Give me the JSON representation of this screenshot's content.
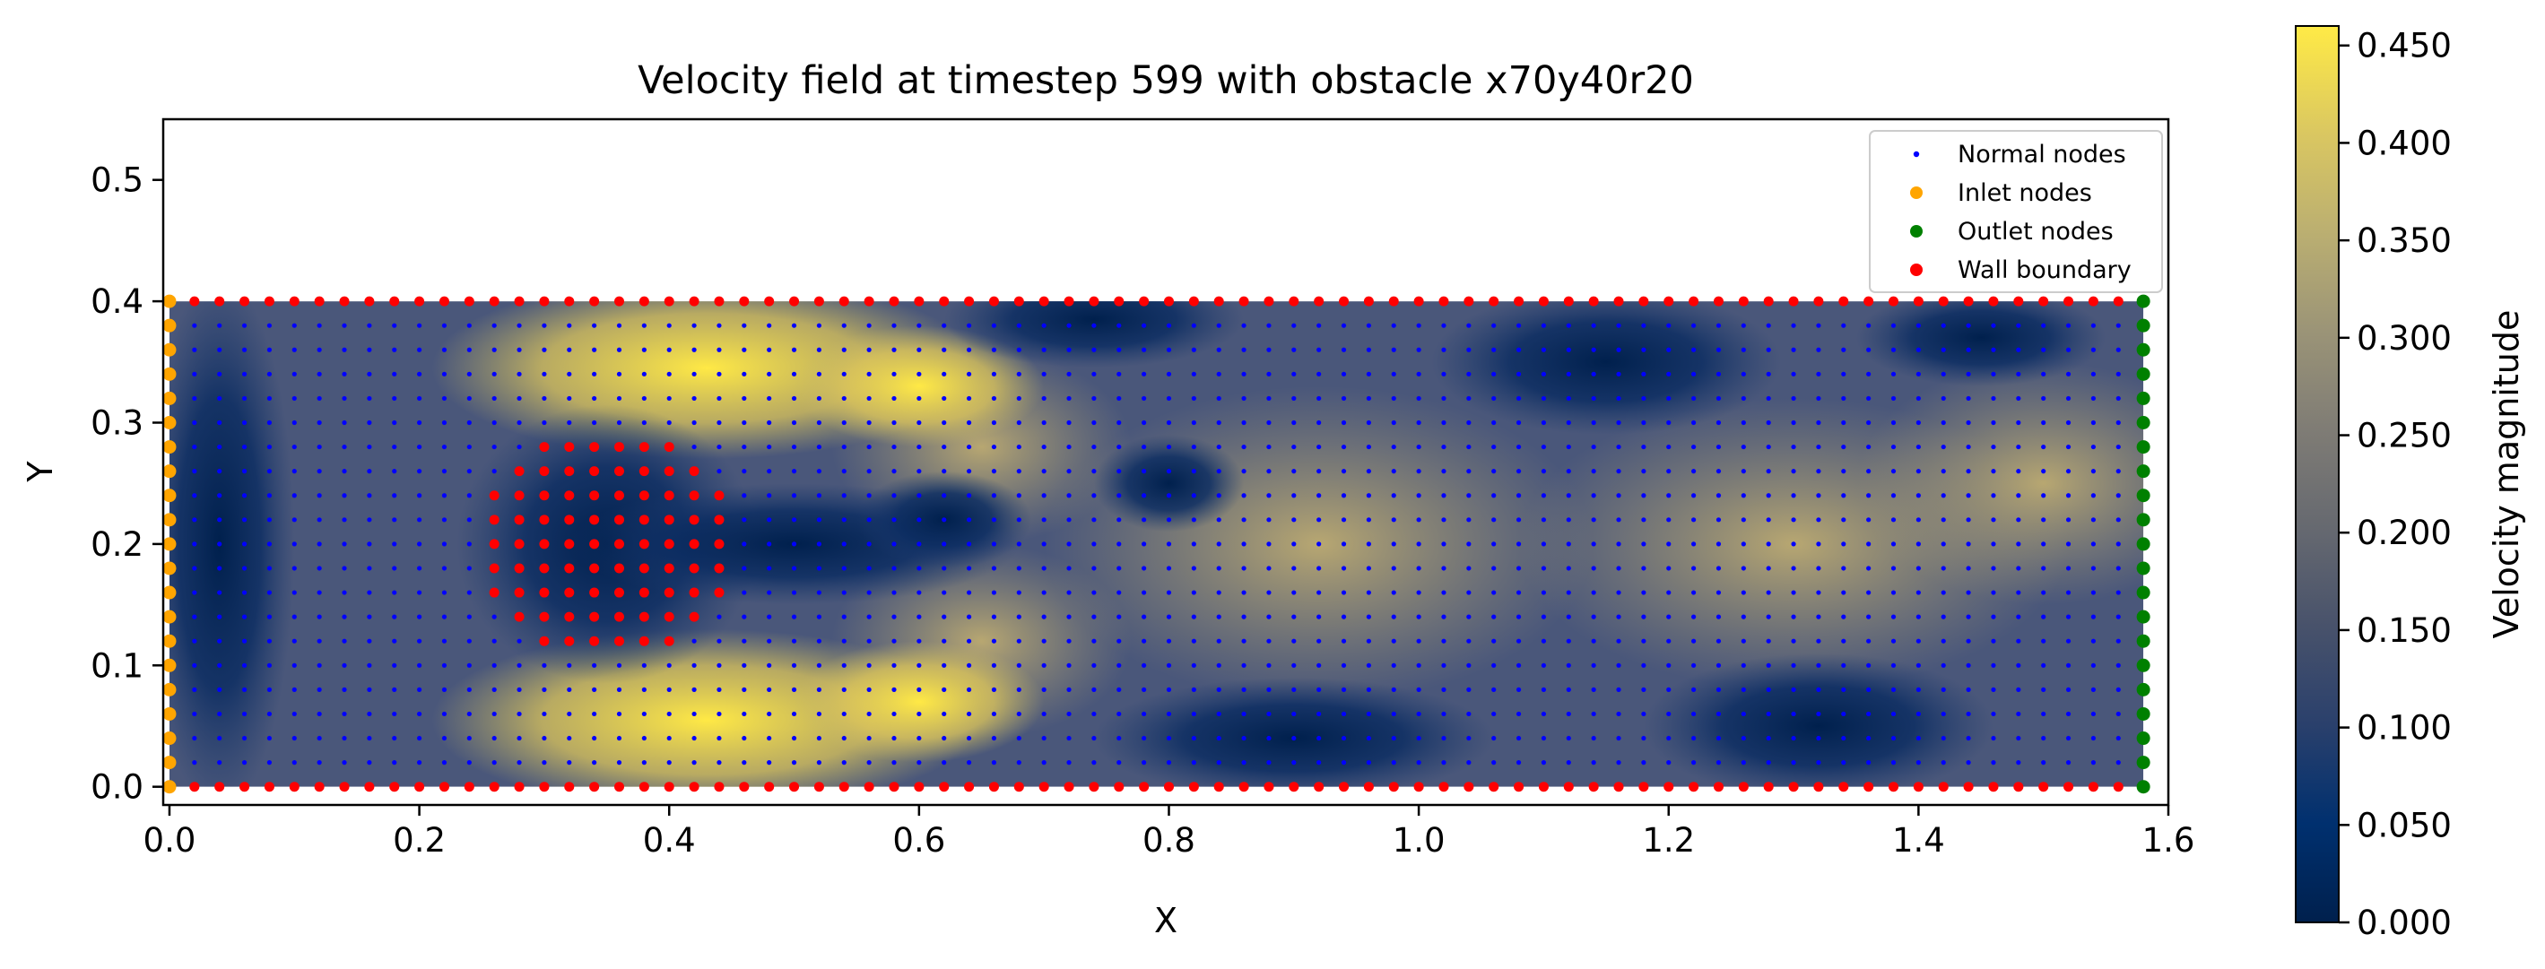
{
  "chart_data": {
    "type": "scatter",
    "title": "Velocity field at timestep 599 with obstacle x70y40r20",
    "xlabel": "X",
    "ylabel": "Y",
    "xlim": [
      -0.005,
      1.6
    ],
    "ylim": [
      -0.015,
      0.55
    ],
    "xticks": [
      0.0,
      0.2,
      0.4,
      0.6,
      0.8,
      1.0,
      1.2,
      1.4,
      1.6
    ],
    "xtick_labels": [
      "0.0",
      "0.2",
      "0.4",
      "0.6",
      "0.8",
      "1.0",
      "1.2",
      "1.4",
      "1.6"
    ],
    "yticks": [
      0.0,
      0.1,
      0.2,
      0.3,
      0.4,
      0.5
    ],
    "ytick_labels": [
      "0.0",
      "0.1",
      "0.2",
      "0.3",
      "0.4",
      "0.5"
    ],
    "grid": false,
    "legend_position": "top-right",
    "domain": {
      "x": [
        0.0,
        1.58
      ],
      "y": [
        0.0,
        0.4
      ],
      "spacing": 0.02
    },
    "obstacle": {
      "cx": 0.35,
      "cy": 0.2,
      "r": 0.1
    },
    "series": [
      {
        "name": "Normal nodes",
        "color": "#0000ff",
        "marker": "small-dot",
        "rule": "interior grid, spacing 0.02"
      },
      {
        "name": "Inlet nodes",
        "color": "#ffa500",
        "marker": "dot",
        "rule": "x = 0.0, y from 0.0 to 0.4"
      },
      {
        "name": "Outlet nodes",
        "color": "#008000",
        "marker": "dot",
        "rule": "x = 1.58, y from 0.0 to 0.4"
      },
      {
        "name": "Wall boundary",
        "color": "#ff0000",
        "marker": "dot",
        "rule": "y = 0.0 and y = 0.4 walls, plus nodes inside obstacle"
      }
    ],
    "heatmap": {
      "quantity": "velocity magnitude",
      "vmin": 0.0,
      "vmax": 0.46,
      "colormap": "cividis",
      "description_points": [
        {
          "x": 0.45,
          "y": 0.34,
          "value": 0.43
        },
        {
          "x": 0.45,
          "y": 0.06,
          "value": 0.43
        },
        {
          "x": 0.35,
          "y": 0.2,
          "value": 0.0
        },
        {
          "x": 0.9,
          "y": 0.2,
          "value": 0.33
        },
        {
          "x": 1.15,
          "y": 0.35,
          "value": 0.03
        },
        {
          "x": 1.32,
          "y": 0.05,
          "value": 0.03
        },
        {
          "x": 0.85,
          "y": 0.05,
          "value": 0.05
        }
      ]
    },
    "colorbar": {
      "label": "Velocity magnitude",
      "ticks": [
        0.0,
        0.05,
        0.1,
        0.15,
        0.2,
        0.25,
        0.3,
        0.35,
        0.4,
        0.45
      ],
      "tick_labels": [
        "0.000",
        "0.050",
        "0.100",
        "0.150",
        "0.200",
        "0.250",
        "0.300",
        "0.350",
        "0.400",
        "0.450"
      ],
      "range": [
        0.0,
        0.46
      ]
    }
  }
}
